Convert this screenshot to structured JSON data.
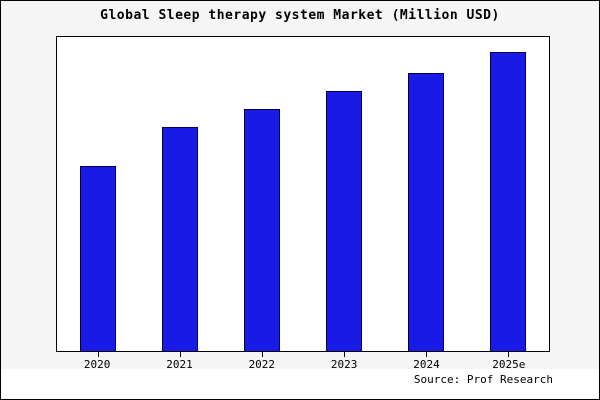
{
  "chart_data": {
    "type": "bar",
    "title": "Global Sleep therapy system Market (Million USD)",
    "categories": [
      "2020",
      "2021",
      "2022",
      "2023",
      "2024",
      "2025e"
    ],
    "values": [
      62,
      75,
      81,
      87,
      93,
      100
    ],
    "xlabel": "",
    "ylabel": "",
    "ylim": [
      0,
      105
    ],
    "grid": false,
    "legend": false,
    "bar_fill": "#1a1ae6",
    "bar_edge": "#00004d",
    "figure_background": "#f5f5f5",
    "plot_background": "#ffffff"
  },
  "source": "Source: Prof Research"
}
